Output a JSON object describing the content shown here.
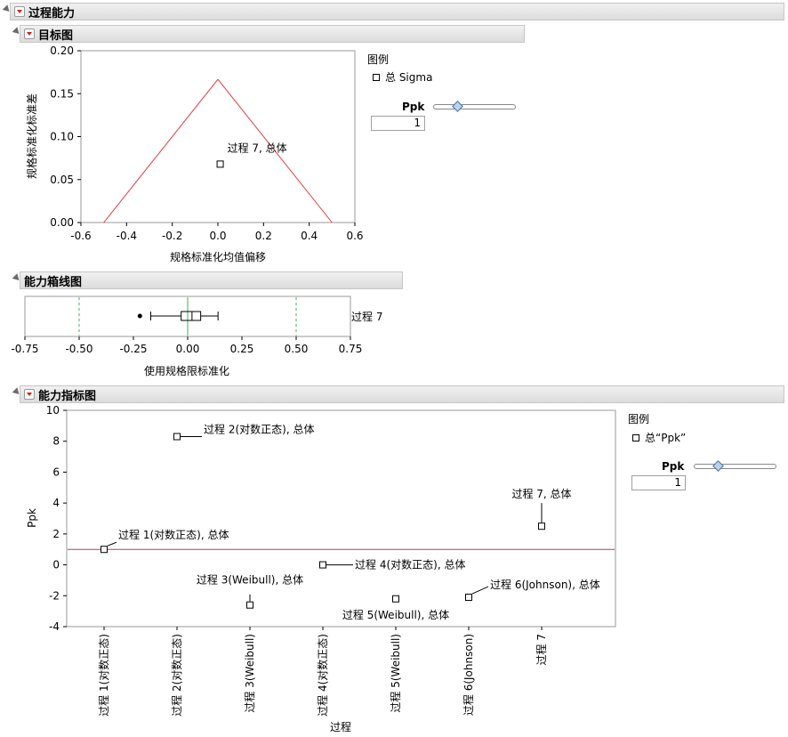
{
  "sections": {
    "process_capability": "过程能力",
    "goal_plot": "目标图",
    "capability_boxplot": "能力箱线图",
    "capability_index_plot": "能力指标图"
  },
  "goal_plot": {
    "ylabel": "规格标准化标准差",
    "xlabel": "规格标准化均值偏移",
    "legend_title": "图例",
    "legend_item": "总 Sigma",
    "ppk_label": "Ppk",
    "ppk_value": "1",
    "point_label": "过程 7, 总体"
  },
  "boxplot": {
    "xlabel": "使用规格限标准化",
    "row_label": "过程 7"
  },
  "index_plot": {
    "ylabel": "Ppk",
    "xlabel": "过程",
    "legend_title": "图例",
    "legend_item": "总“Ppk”",
    "ppk_label": "Ppk",
    "ppk_value": "1"
  },
  "chart_data": [
    {
      "type": "scatter",
      "name": "goal_plot",
      "xlabel": "规格标准化均值偏移",
      "ylabel": "规格标准化标准差",
      "xlim": [
        -0.6,
        0.6
      ],
      "ylim": [
        0,
        0.2
      ],
      "x_ticks": [
        "-0.6",
        "-0.4",
        "-0.2",
        "0.0",
        "0.2",
        "0.4",
        "0.6"
      ],
      "y_ticks": [
        "0.00",
        "0.05",
        "0.10",
        "0.15",
        "0.20"
      ],
      "goal_triangle": [
        [
          -0.5,
          0
        ],
        [
          0,
          0.1667
        ],
        [
          0.5,
          0
        ]
      ],
      "points": [
        {
          "x": 0.01,
          "y": 0.068,
          "label": "过程 7, 总体"
        }
      ],
      "grid": false
    },
    {
      "type": "box",
      "name": "capability_boxplot",
      "xlabel": "使用规格限标准化",
      "xlim": [
        -0.75,
        0.75
      ],
      "x_ticks": [
        "-0.75",
        "-0.50",
        "-0.25",
        "0.00",
        "0.25",
        "0.50",
        "0.75"
      ],
      "spec_limits": [
        -0.5,
        0.5
      ],
      "target": 0,
      "box": {
        "label": "过程 7",
        "whisker_low": -0.17,
        "q1": -0.03,
        "median": 0.02,
        "q3": 0.06,
        "whisker_high": 0.14,
        "outliers": [
          -0.22
        ]
      }
    },
    {
      "type": "scatter",
      "name": "capability_index_plot",
      "xlabel": "过程",
      "ylabel": "Ppk",
      "ylim": [
        -4,
        10
      ],
      "y_ticks": [
        "-4",
        "-2",
        "0",
        "2",
        "4",
        "6",
        "8",
        "10"
      ],
      "reference_line": 1,
      "categories": [
        "过程 1(对数正态)",
        "过程 2(对数正态)",
        "过程 3(Weibull)",
        "过程 4(对数正态)",
        "过程 5(Weibull)",
        "过程 6(Johnson)",
        "过程 7"
      ],
      "values": [
        1.0,
        8.3,
        -2.6,
        0.0,
        -2.2,
        -2.1,
        2.5
      ],
      "point_labels": [
        "过程 1(对数正态), 总体",
        "过程 2(对数正态), 总体",
        "过程 3(Weibull), 总体",
        "过程 4(对数正态), 总体",
        "过程 5(Weibull), 总体",
        "过程 6(Johnson), 总体",
        "过程 7, 总体"
      ]
    }
  ]
}
